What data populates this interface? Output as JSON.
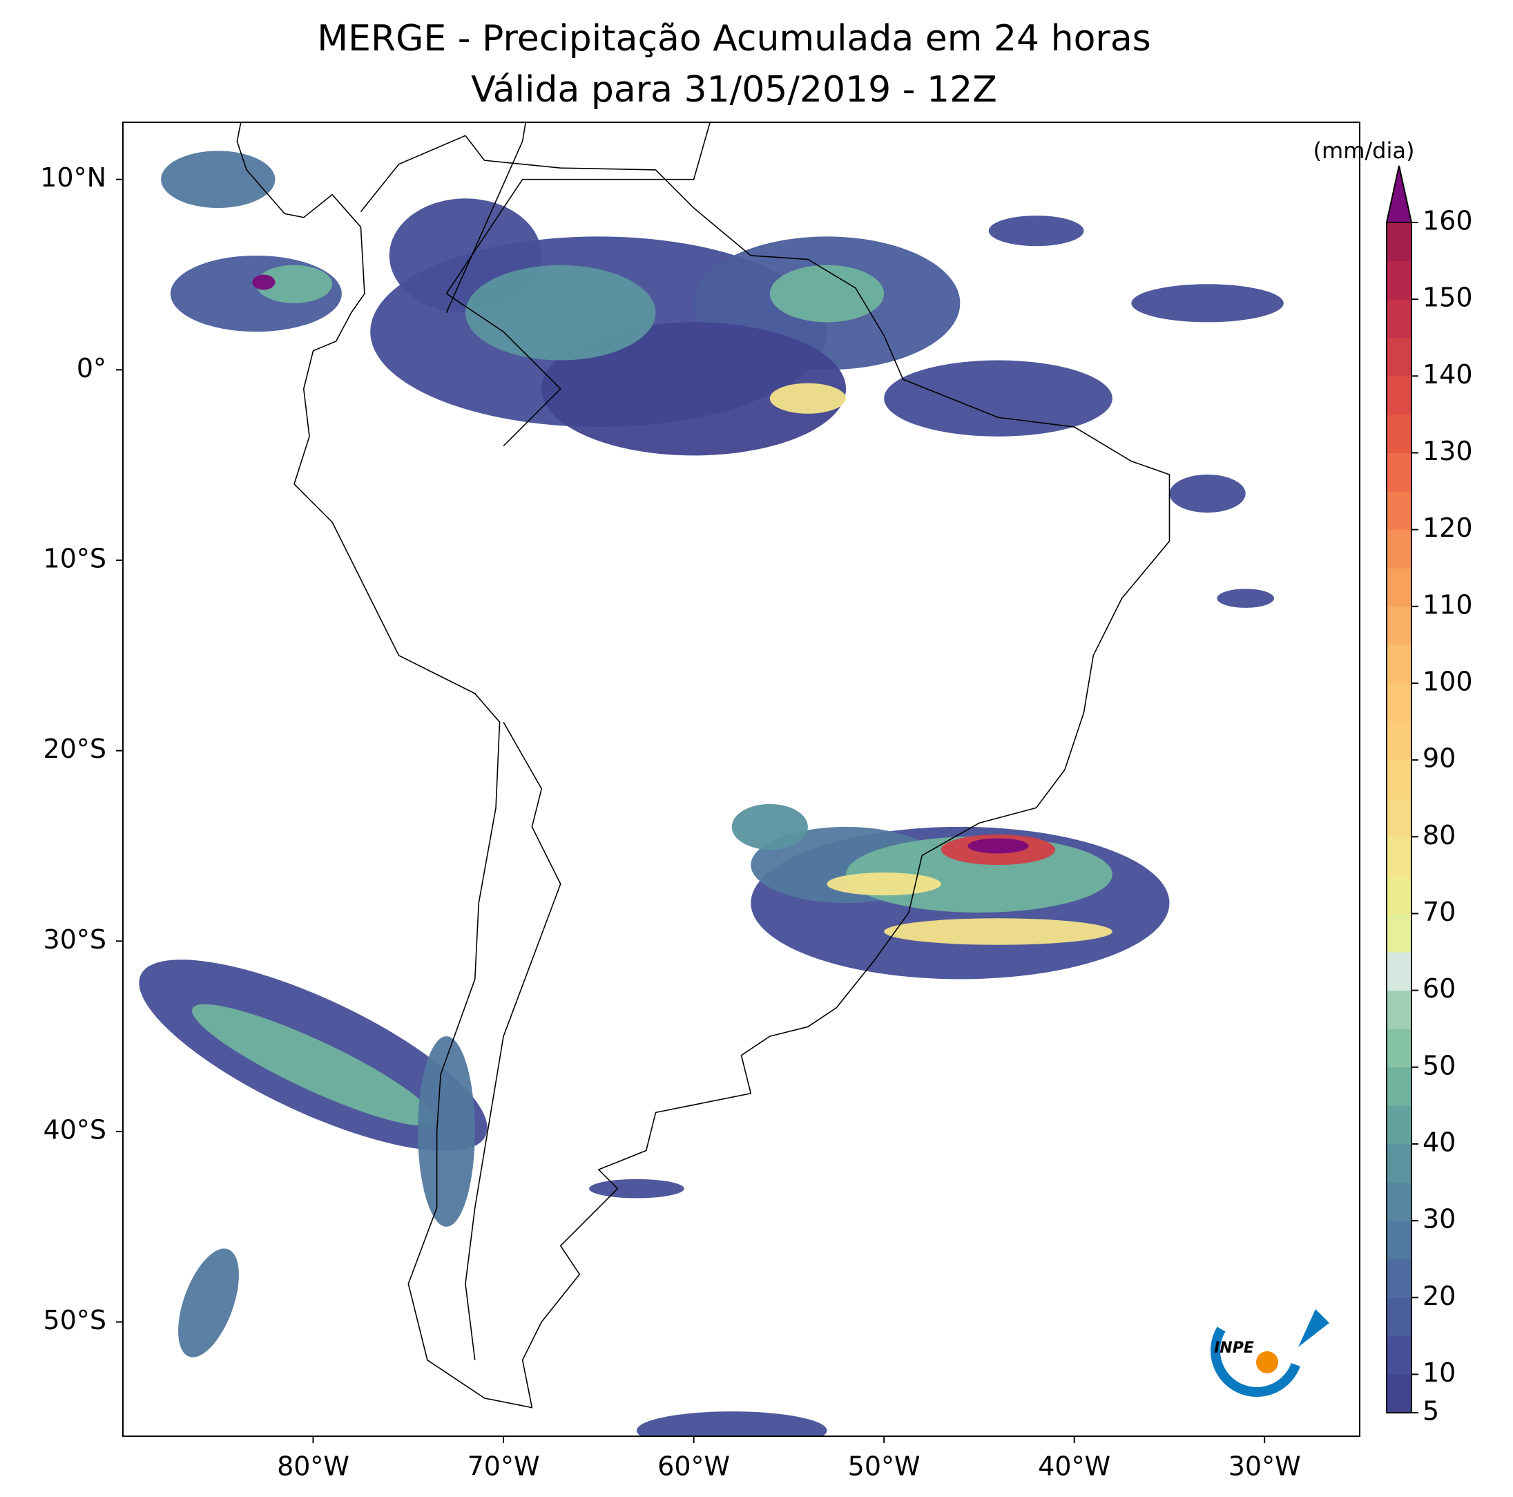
{
  "chart_data": {
    "type": "map",
    "title": "MERGE - Precipitação Acumulada em 24 horas",
    "subtitle": "Válida para 31/05/2019 - 12Z",
    "xlim": [
      -90,
      -25
    ],
    "ylim": [
      -56,
      13
    ],
    "xticks": [
      {
        "value": -80,
        "label": "80°W"
      },
      {
        "value": -70,
        "label": "70°W"
      },
      {
        "value": -60,
        "label": "60°W"
      },
      {
        "value": -50,
        "label": "50°W"
      },
      {
        "value": -40,
        "label": "40°W"
      },
      {
        "value": -30,
        "label": "30°W"
      }
    ],
    "yticks": [
      {
        "value": 10,
        "label": "10°N"
      },
      {
        "value": 0,
        "label": "0°"
      },
      {
        "value": -10,
        "label": "10°S"
      },
      {
        "value": -20,
        "label": "20°S"
      },
      {
        "value": -30,
        "label": "30°S"
      },
      {
        "value": -40,
        "label": "40°S"
      },
      {
        "value": -50,
        "label": "50°S"
      }
    ],
    "colorbar": {
      "label": "(mm/dia)",
      "lim": [
        5,
        160
      ],
      "ticks": [
        5,
        10,
        20,
        30,
        40,
        50,
        60,
        70,
        80,
        90,
        100,
        110,
        120,
        130,
        140,
        150,
        160
      ],
      "colors": [
        "#41458f",
        "#464f97",
        "#4b5e9c",
        "#4e6c9f",
        "#52799f",
        "#56879f",
        "#5b949f",
        "#63a39e",
        "#6fb39e",
        "#86c2a6",
        "#a0cfb4",
        "#d5e8e0",
        "#e6f09a",
        "#eeeb8f",
        "#f3e38a",
        "#f7db84",
        "#f9d57f",
        "#fbcd7a",
        "#fcc776",
        "#fbbf6f",
        "#f9b066",
        "#f7a15d",
        "#f59056",
        "#f27e4f",
        "#ee6c49",
        "#e65a44",
        "#dc4c45",
        "#d13f47",
        "#c43349",
        "#b5284b",
        "#a51f4c"
      ],
      "extend_color": "#7b0a7b"
    },
    "logo_text": "INPE"
  }
}
